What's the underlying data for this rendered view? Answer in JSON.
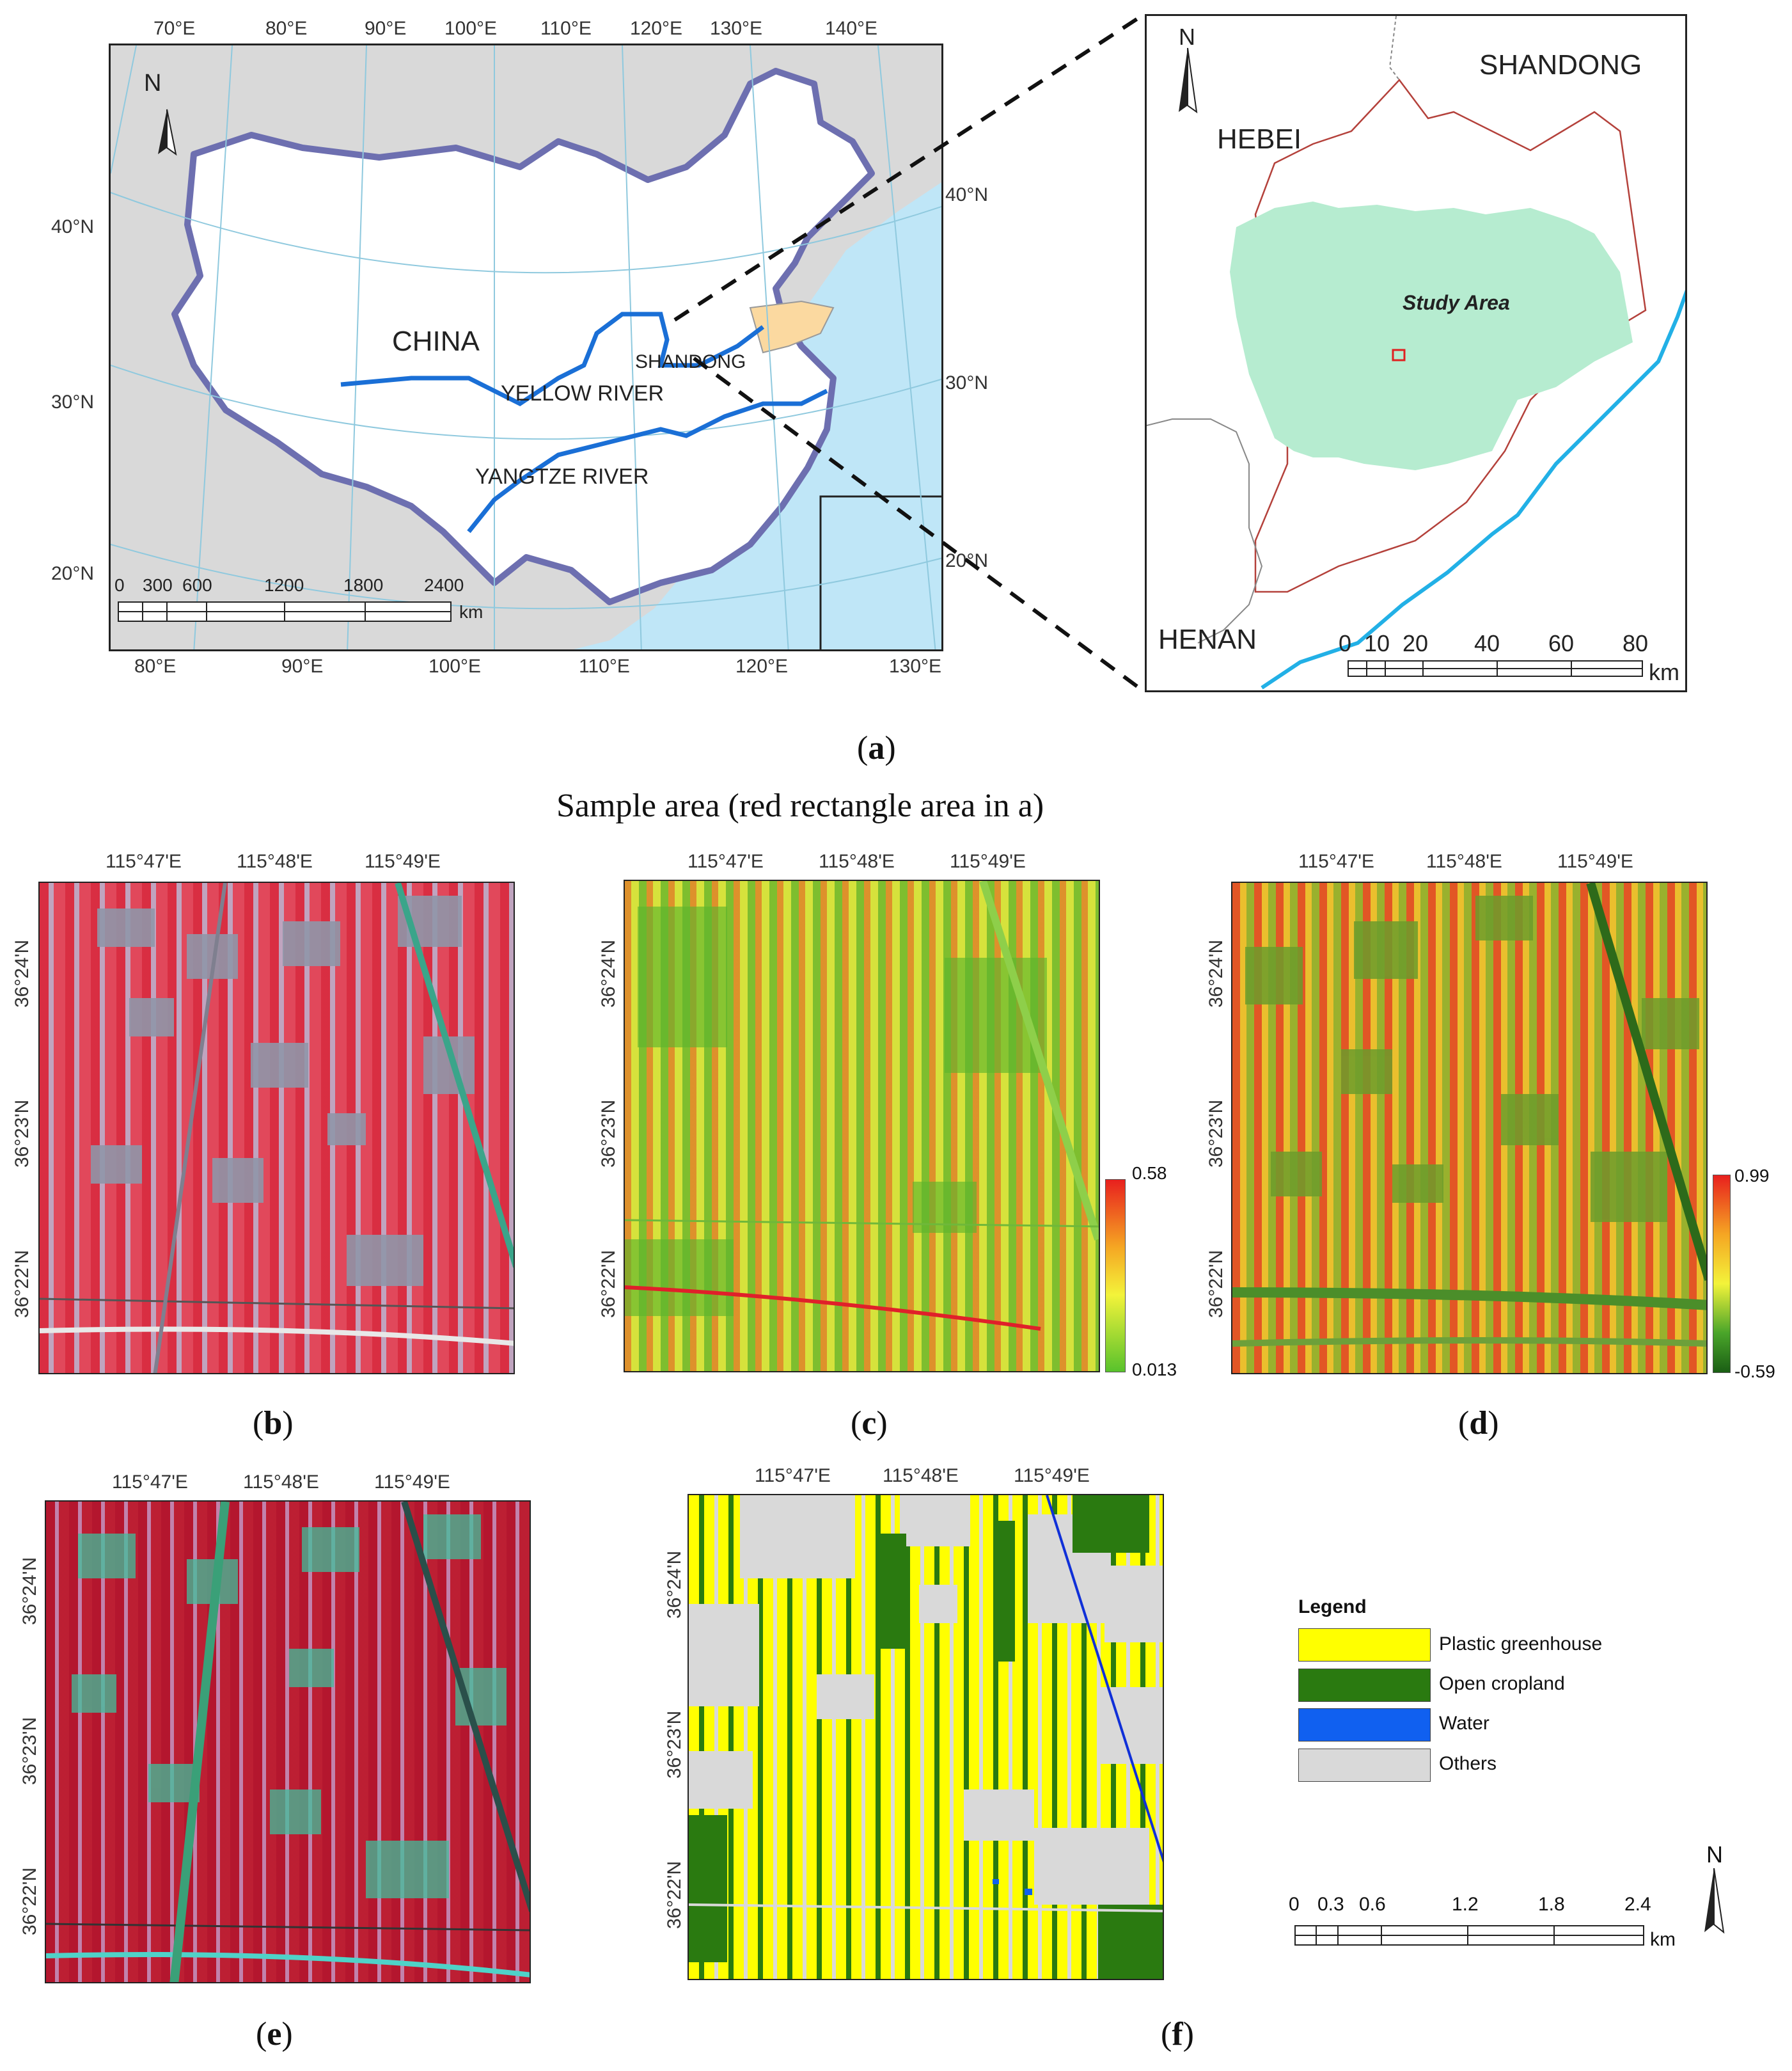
{
  "panel_a": {
    "top_lon_ticks": [
      "70°E",
      "80°E",
      "90°E",
      "100°E",
      "110°E",
      "120°E",
      "130°E",
      "140°E"
    ],
    "bottom_lon_ticks": [
      "80°E",
      "90°E",
      "100°E",
      "110°E",
      "120°E",
      "130°E"
    ],
    "left_lat_ticks": [
      "40°N",
      "30°N",
      "20°N"
    ],
    "right_lat_ticks": [
      "40°N",
      "30°N",
      "20°N"
    ],
    "labels": {
      "china": "CHINA",
      "shandong": "SHANDONG",
      "yellow_river": "YELLOW RIVER",
      "yangtze_river": "YANGTZE RIVER",
      "north": "N"
    },
    "scale_ticks": [
      "0",
      "300",
      "600",
      "1200",
      "1800",
      "2400"
    ],
    "scale_unit": "km",
    "colors": {
      "sea": "#bfe6f7",
      "land": "#d9d9d9",
      "china": "#ffffff",
      "river": "#1a6fd6",
      "border": "#6d6fb0",
      "shandong": "#fbd9a0"
    }
  },
  "inset": {
    "labels": {
      "shandong": "SHANDONG",
      "hebei": "HEBEI",
      "henan": "HENAN",
      "study_area": "Study Area",
      "north": "N"
    },
    "scale_ticks": [
      "0",
      "10",
      "20",
      "40",
      "60",
      "80"
    ],
    "scale_unit": "km",
    "colors": {
      "study_area": "#b6ecd0",
      "boundary": "#b4413b",
      "river": "#22b0e6"
    }
  },
  "captions": {
    "a": "a",
    "b": "b",
    "c": "c",
    "d": "d",
    "e": "e",
    "f": "f",
    "sample_title": "Sample area (red rectangle area in a)"
  },
  "sample_panels": {
    "lon_ticks": [
      "115°47'E",
      "115°48'E",
      "115°49'E"
    ],
    "lat_ticks": [
      "36°24'N",
      "36°23'N",
      "36°22'N"
    ]
  },
  "colorbar_c": {
    "max": "0.58",
    "min": "0.013",
    "colors": [
      "#e8201e",
      "#f5a623",
      "#f3f33a",
      "#58c22c"
    ]
  },
  "colorbar_d": {
    "max": "0.99",
    "min": "-0.59",
    "colors": [
      "#e8201e",
      "#f5a623",
      "#f3f33a",
      "#4aa52a",
      "#1a5e14"
    ]
  },
  "legend": {
    "title": "Legend",
    "items": [
      {
        "label": "Plastic greenhouse",
        "color": "#ffff00"
      },
      {
        "label": "Open cropland",
        "color": "#2a7a10"
      },
      {
        "label": "Water",
        "color": "#1060f0"
      },
      {
        "label": "Others",
        "color": "#d9d9d9"
      }
    ]
  },
  "scalebar_f": {
    "ticks": [
      "0",
      "0.3",
      "0.6",
      "1.2",
      "1.8",
      "2.4"
    ],
    "unit": "km",
    "north": "N"
  }
}
